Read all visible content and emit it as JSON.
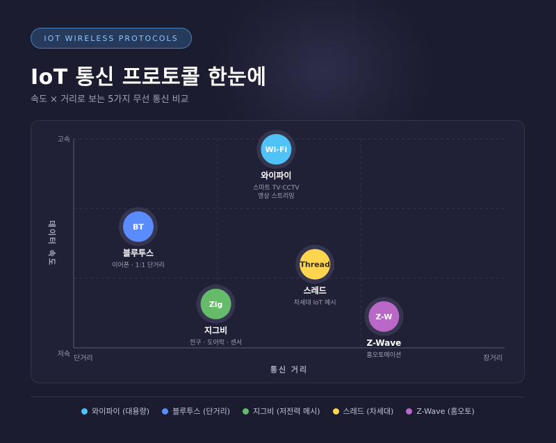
{
  "badge": "IOT WIRELESS PROTOCOLS",
  "title": "IoT 통신 프로토콜 한눈에",
  "subtitle": "속도 × 거리로 보는 5가지 무선 통신 비교",
  "chart_data": {
    "type": "scatter",
    "xlabel": "통신 거리",
    "ylabel": "데이터 속도",
    "x_tick_labels": [
      "단거리",
      "장거리"
    ],
    "y_tick_labels": [
      "고속",
      "저속"
    ],
    "xlim": [
      0,
      10
    ],
    "ylim": [
      0,
      10
    ],
    "grid": true,
    "legend_position": "bottom",
    "points": [
      {
        "name": "와이파이",
        "icon_text": "Wi-Fi",
        "desc": [
          "스마트 TV·CCTV",
          "영상 스트리밍"
        ],
        "x": 4.7,
        "y": 9.5,
        "color": "#4fc3f7",
        "legend": "와이파이 (대용량)"
      },
      {
        "name": "블루투스",
        "icon_text": "BT",
        "desc": [
          "이어폰 · 1:1 단거리"
        ],
        "x": 1.5,
        "y": 5.8,
        "color": "#5b8cff",
        "legend": "블루투스 (단거리)"
      },
      {
        "name": "지그비",
        "icon_text": "Zig",
        "desc": [
          "전구 · 도어락 · 센서"
        ],
        "x": 3.3,
        "y": 2.1,
        "color": "#66bb6a",
        "legend": "지그비 (저전력 메시)"
      },
      {
        "name": "스레드",
        "icon_text": "Thread",
        "desc": [
          "차세대 IoT 메시"
        ],
        "x": 5.6,
        "y": 4.0,
        "color": "#ffd54f",
        "legend": "스레드 (차세대)"
      },
      {
        "name": "Z-Wave",
        "icon_text": "Z-W",
        "desc": [
          "홈오토메이션"
        ],
        "x": 7.2,
        "y": 1.5,
        "color": "#ba68c8",
        "legend": "Z-Wave (홈오토)"
      }
    ]
  }
}
